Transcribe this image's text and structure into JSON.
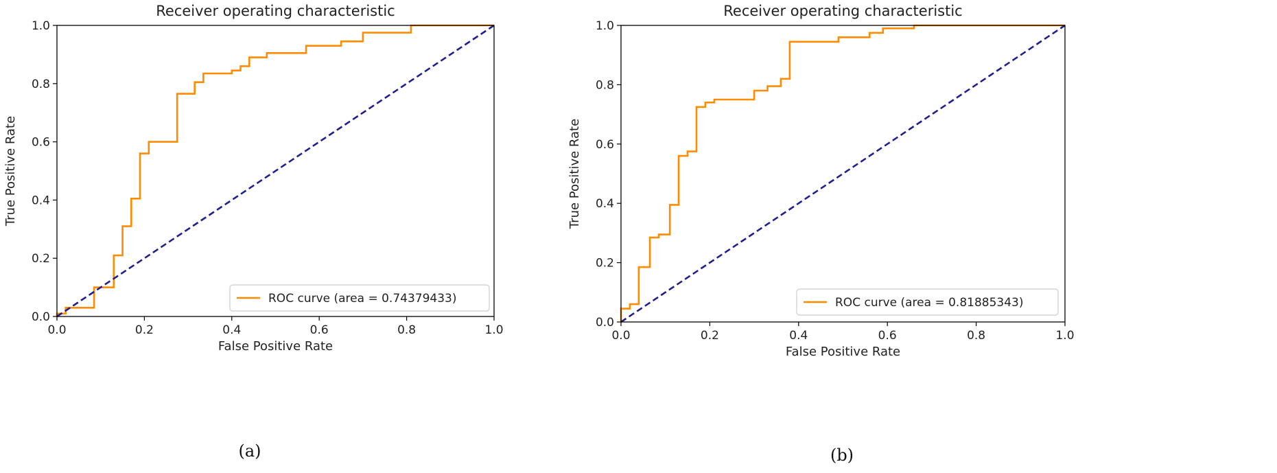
{
  "chart_data": [
    {
      "type": "line",
      "panel_label": "(a)",
      "title": "Receiver operating characteristic",
      "xlabel": "False Positive Rate",
      "ylabel": "True Positive Rate",
      "xlim": [
        0.0,
        1.0
      ],
      "ylim": [
        0.0,
        1.0
      ],
      "xticks": [
        "0.0",
        "0.2",
        "0.4",
        "0.6",
        "0.8",
        "1.0"
      ],
      "yticks": [
        "0.0",
        "0.2",
        "0.4",
        "0.6",
        "0.8",
        "1.0"
      ],
      "grid": false,
      "legend_position": "lower-right",
      "series": [
        {
          "name": "ROC curve (area = 0.74379433)",
          "color": "#ff8c00",
          "style": "solid",
          "x": [
            0.0,
            0.0,
            0.02,
            0.02,
            0.04,
            0.04,
            0.085,
            0.085,
            0.13,
            0.13,
            0.15,
            0.15,
            0.17,
            0.17,
            0.19,
            0.19,
            0.21,
            0.21,
            0.275,
            0.275,
            0.315,
            0.315,
            0.335,
            0.335,
            0.4,
            0.4,
            0.42,
            0.42,
            0.44,
            0.44,
            0.46,
            0.46,
            0.48,
            0.48,
            0.57,
            0.57,
            0.65,
            0.65,
            0.7,
            0.7,
            0.81,
            0.81,
            1.0
          ],
          "y": [
            0.0,
            0.01,
            0.01,
            0.03,
            0.03,
            0.03,
            0.03,
            0.1,
            0.1,
            0.21,
            0.21,
            0.31,
            0.31,
            0.405,
            0.405,
            0.56,
            0.56,
            0.6,
            0.6,
            0.765,
            0.765,
            0.805,
            0.805,
            0.835,
            0.835,
            0.845,
            0.845,
            0.86,
            0.86,
            0.89,
            0.89,
            0.89,
            0.89,
            0.905,
            0.905,
            0.93,
            0.93,
            0.945,
            0.945,
            0.975,
            0.975,
            1.0,
            1.0
          ]
        },
        {
          "name": "",
          "color": "#1f1f8f",
          "style": "dashed",
          "x": [
            0.0,
            1.0
          ],
          "y": [
            0.0,
            1.0
          ]
        }
      ]
    },
    {
      "type": "line",
      "panel_label": "(b)",
      "title": "Receiver operating characteristic",
      "xlabel": "False Positive Rate",
      "ylabel": "True Positive Rate",
      "xlim": [
        0.0,
        1.0
      ],
      "ylim": [
        0.0,
        1.0
      ],
      "xticks": [
        "0.0",
        "0.2",
        "0.4",
        "0.6",
        "0.8",
        "1.0"
      ],
      "yticks": [
        "0.0",
        "0.2",
        "0.4",
        "0.6",
        "0.8",
        "1.0"
      ],
      "grid": false,
      "legend_position": "lower-right",
      "series": [
        {
          "name": "ROC curve (area = 0.81885343)",
          "color": "#ff8c00",
          "style": "solid",
          "x": [
            0.0,
            0.0,
            0.02,
            0.02,
            0.04,
            0.04,
            0.065,
            0.065,
            0.085,
            0.085,
            0.11,
            0.11,
            0.13,
            0.13,
            0.15,
            0.15,
            0.17,
            0.17,
            0.19,
            0.19,
            0.21,
            0.21,
            0.3,
            0.3,
            0.33,
            0.33,
            0.36,
            0.36,
            0.38,
            0.38,
            0.49,
            0.49,
            0.56,
            0.56,
            0.59,
            0.59,
            0.66,
            0.66,
            1.0
          ],
          "y": [
            0.0,
            0.045,
            0.045,
            0.06,
            0.06,
            0.185,
            0.185,
            0.285,
            0.285,
            0.295,
            0.295,
            0.395,
            0.395,
            0.56,
            0.56,
            0.575,
            0.575,
            0.725,
            0.725,
            0.74,
            0.74,
            0.75,
            0.75,
            0.78,
            0.78,
            0.795,
            0.795,
            0.82,
            0.82,
            0.945,
            0.945,
            0.96,
            0.96,
            0.975,
            0.975,
            0.99,
            0.99,
            1.0,
            1.0
          ]
        },
        {
          "name": "",
          "color": "#1f1f8f",
          "style": "dashed",
          "x": [
            0.0,
            1.0
          ],
          "y": [
            0.0,
            1.0
          ]
        }
      ]
    }
  ]
}
